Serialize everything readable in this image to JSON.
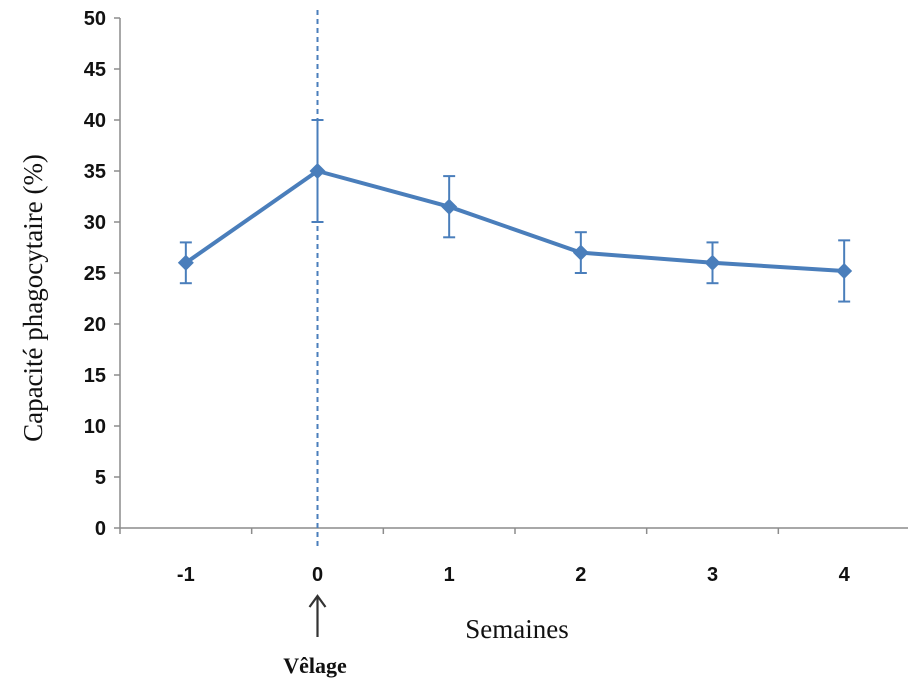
{
  "colors": {
    "series": "#4a7ebb",
    "axis": "#8c8c8c",
    "text": "#111111",
    "arrow": "#333333"
  },
  "chart_data": {
    "type": "line",
    "title": "",
    "xlabel": "Semaines",
    "ylabel": "Capacité phagocytaire (%)",
    "x": [
      -1,
      0,
      1,
      2,
      3,
      4
    ],
    "xticks": [
      "-1",
      "0",
      "1",
      "2",
      "3",
      "4"
    ],
    "xlim": [
      -1.5,
      4.5
    ],
    "ylim": [
      0,
      50
    ],
    "yticks": [
      "0",
      "5",
      "10",
      "15",
      "20",
      "25",
      "30",
      "35",
      "40",
      "45",
      "50"
    ],
    "grid": false,
    "legend": "none",
    "series": [
      {
        "values": [
          26,
          35,
          31.5,
          27,
          26,
          25.2
        ],
        "error": [
          2,
          5,
          3,
          2,
          2,
          3
        ],
        "marker": "diamond"
      }
    ],
    "annotations": [
      {
        "type": "vline",
        "x": 0,
        "style": "dashed"
      },
      {
        "type": "arrow-label",
        "x": 0,
        "text": "Vêlage"
      }
    ]
  }
}
